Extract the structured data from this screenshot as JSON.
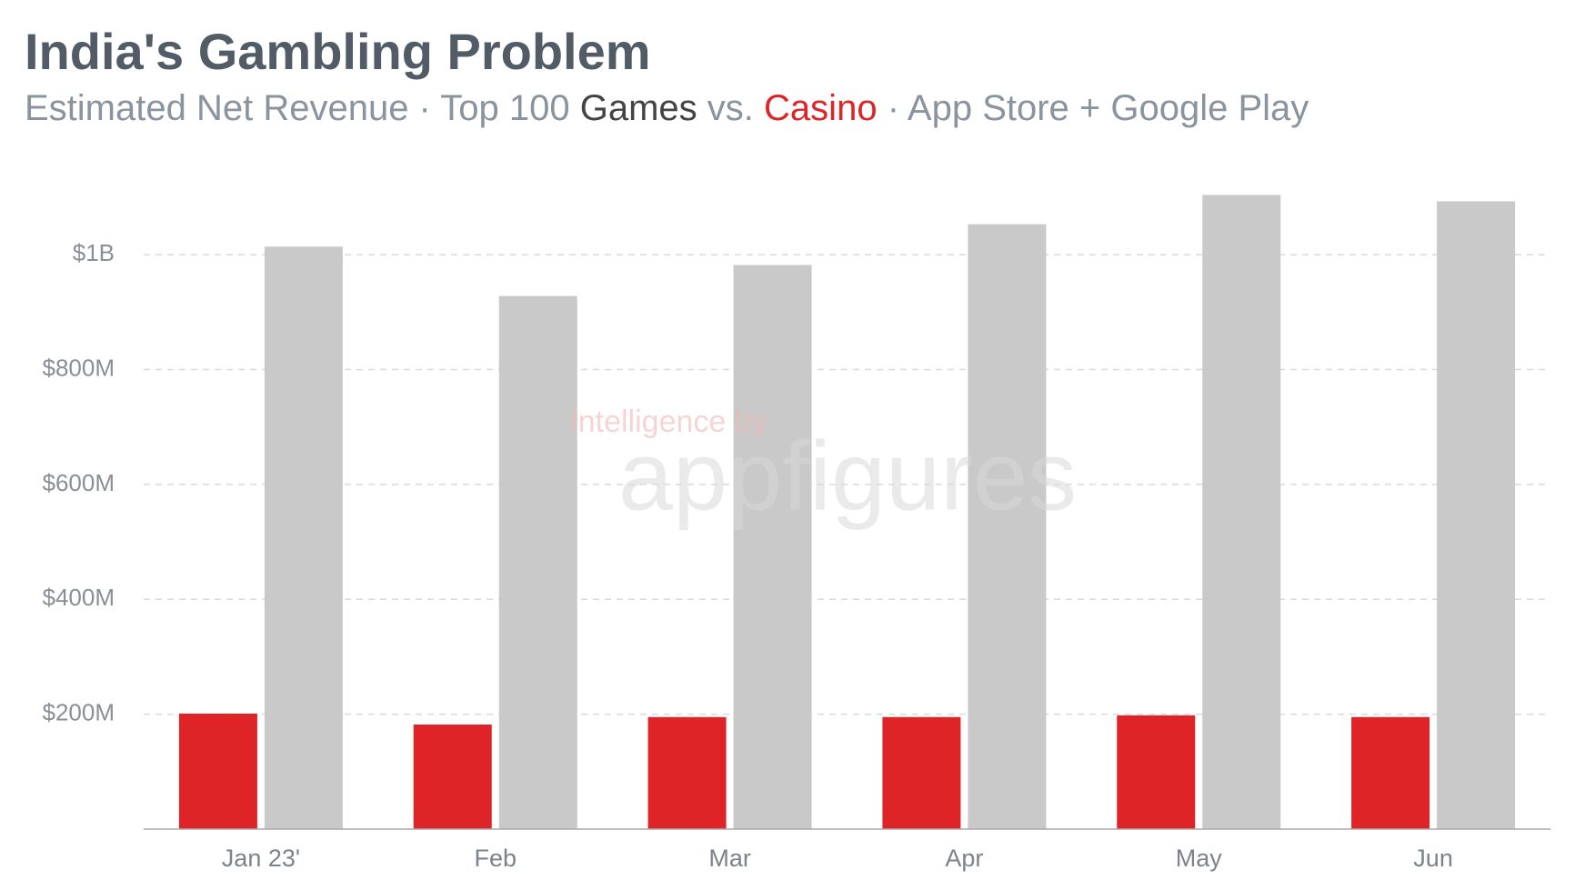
{
  "chart_data": {
    "type": "bar",
    "title": "India's Gambling Problem",
    "subtitle_parts": [
      "Estimated Net Revenue · Top 100",
      "vs.",
      "· App Store + Google Play"
    ],
    "watermark": [
      "Intelligence by",
      "appfigures"
    ],
    "categories": [
      "Jan 23'",
      "Feb",
      "Mar",
      "Apr",
      "May",
      "Jun"
    ],
    "series": [
      {
        "name": "Casino",
        "color": "#df2428",
        "values": [
          201,
          182,
          195,
          195,
          198,
          195
        ]
      },
      {
        "name": "Games",
        "color": "#c9c9c9",
        "values": [
          1014,
          928,
          982,
          1053,
          1104,
          1093
        ]
      }
    ],
    "ylim": [
      0,
      1130
    ],
    "yticks": [
      {
        "value": 200,
        "label": "$200M"
      },
      {
        "value": 400,
        "label": "$400M"
      },
      {
        "value": 600,
        "label": "$600M"
      },
      {
        "value": 800,
        "label": "$800M"
      },
      {
        "value": 1000,
        "label": "$1B"
      }
    ],
    "grid": true
  }
}
